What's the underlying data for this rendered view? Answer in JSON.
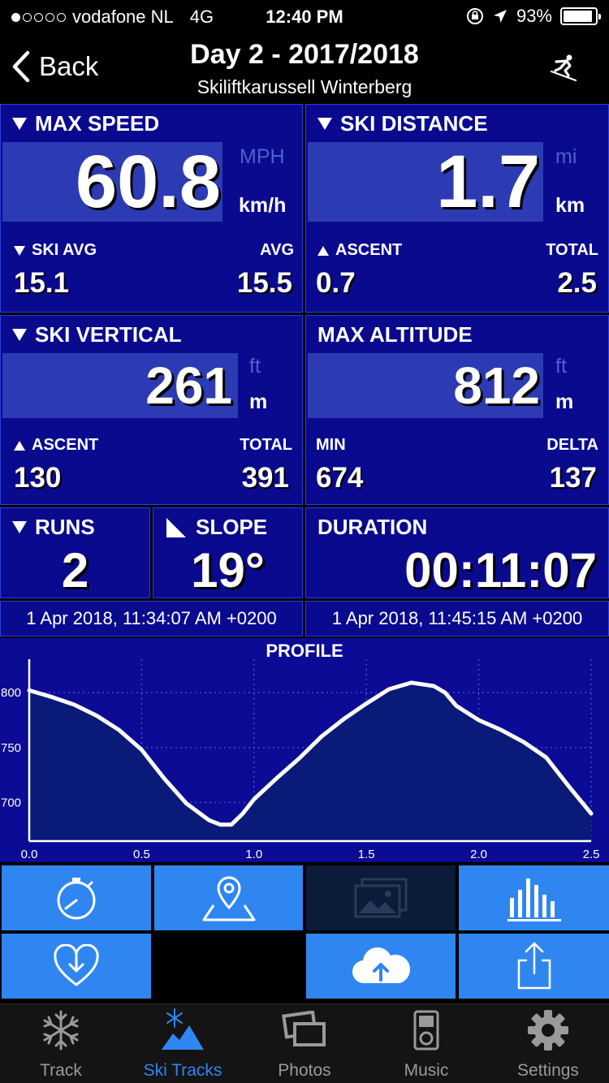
{
  "status": {
    "carrier": "vodafone NL",
    "network": "4G",
    "time": "12:40 PM",
    "battery": "93%",
    "battery_level": 0.93
  },
  "nav": {
    "back_label": "Back",
    "title": "Day 2 - 2017/2018",
    "subtitle": "Skiliftkarussell Winterberg"
  },
  "tiles": {
    "max_speed": {
      "label": "MAX SPEED",
      "value": "60.8",
      "unit_alt": "MPH",
      "unit": "km/h",
      "left_label": "SKI AVG",
      "left_value": "15.1",
      "right_label": "AVG",
      "right_value": "15.5"
    },
    "ski_distance": {
      "label": "SKI DISTANCE",
      "value": "1.7",
      "unit_alt": "mi",
      "unit": "km",
      "left_label": "ASCENT",
      "left_value": "0.7",
      "right_label": "TOTAL",
      "right_value": "2.5"
    },
    "ski_vertical": {
      "label": "SKI VERTICAL",
      "value": "261",
      "unit_alt": "ft",
      "unit": "m",
      "left_label": "ASCENT",
      "left_value": "130",
      "right_label": "TOTAL",
      "right_value": "391"
    },
    "max_altitude": {
      "label": "MAX ALTITUDE",
      "value": "812",
      "unit_alt": "ft",
      "unit": "m",
      "left_label": "MIN",
      "left_value": "674",
      "right_label": "DELTA",
      "right_value": "137"
    },
    "runs": {
      "label": "RUNS",
      "value": "2"
    },
    "slope": {
      "label": "SLOPE",
      "value": "19°"
    },
    "duration": {
      "label": "DURATION",
      "value": "00:11:07"
    }
  },
  "dates": {
    "start": "1 Apr 2018, 11:34:07 AM +0200",
    "end": "1 Apr 2018, 11:45:15 AM +0200"
  },
  "chart_data": {
    "type": "area",
    "title": "PROFILE",
    "xlabel": "",
    "ylabel": "",
    "xlim": [
      0,
      2.5
    ],
    "ylim": [
      674,
      812
    ],
    "x_ticks": [
      "0.0",
      "0.5",
      "1.0",
      "1.5",
      "2.0",
      "2.5"
    ],
    "y_ticks": [
      "800",
      "750",
      "700"
    ],
    "x": [
      0.0,
      0.1,
      0.2,
      0.3,
      0.4,
      0.5,
      0.6,
      0.7,
      0.8,
      0.85,
      0.9,
      0.95,
      1.0,
      1.1,
      1.2,
      1.3,
      1.4,
      1.5,
      1.6,
      1.7,
      1.8,
      1.85,
      1.9,
      2.0,
      2.1,
      2.2,
      2.3,
      2.4,
      2.5
    ],
    "values": [
      802,
      796,
      789,
      779,
      766,
      748,
      722,
      699,
      684,
      680,
      680,
      690,
      703,
      722,
      740,
      760,
      776,
      790,
      803,
      809,
      806,
      800,
      788,
      775,
      766,
      755,
      741,
      715,
      690
    ],
    "grid": true
  },
  "actions": {
    "stopwatch": "stopwatch-icon",
    "map": "map-pin-icon",
    "photos": "photos-icon",
    "stats": "bar-chart-icon",
    "health": "heart-download-icon",
    "upload": "cloud-upload-icon",
    "share": "share-icon"
  },
  "tabbar": {
    "items": [
      {
        "label": "Track"
      },
      {
        "label": "Ski Tracks"
      },
      {
        "label": "Photos"
      },
      {
        "label": "Music"
      },
      {
        "label": "Settings"
      }
    ]
  },
  "colors": {
    "tile": "#0a0a8f",
    "band": "#2c3bb4",
    "accent": "#2f86f0"
  }
}
